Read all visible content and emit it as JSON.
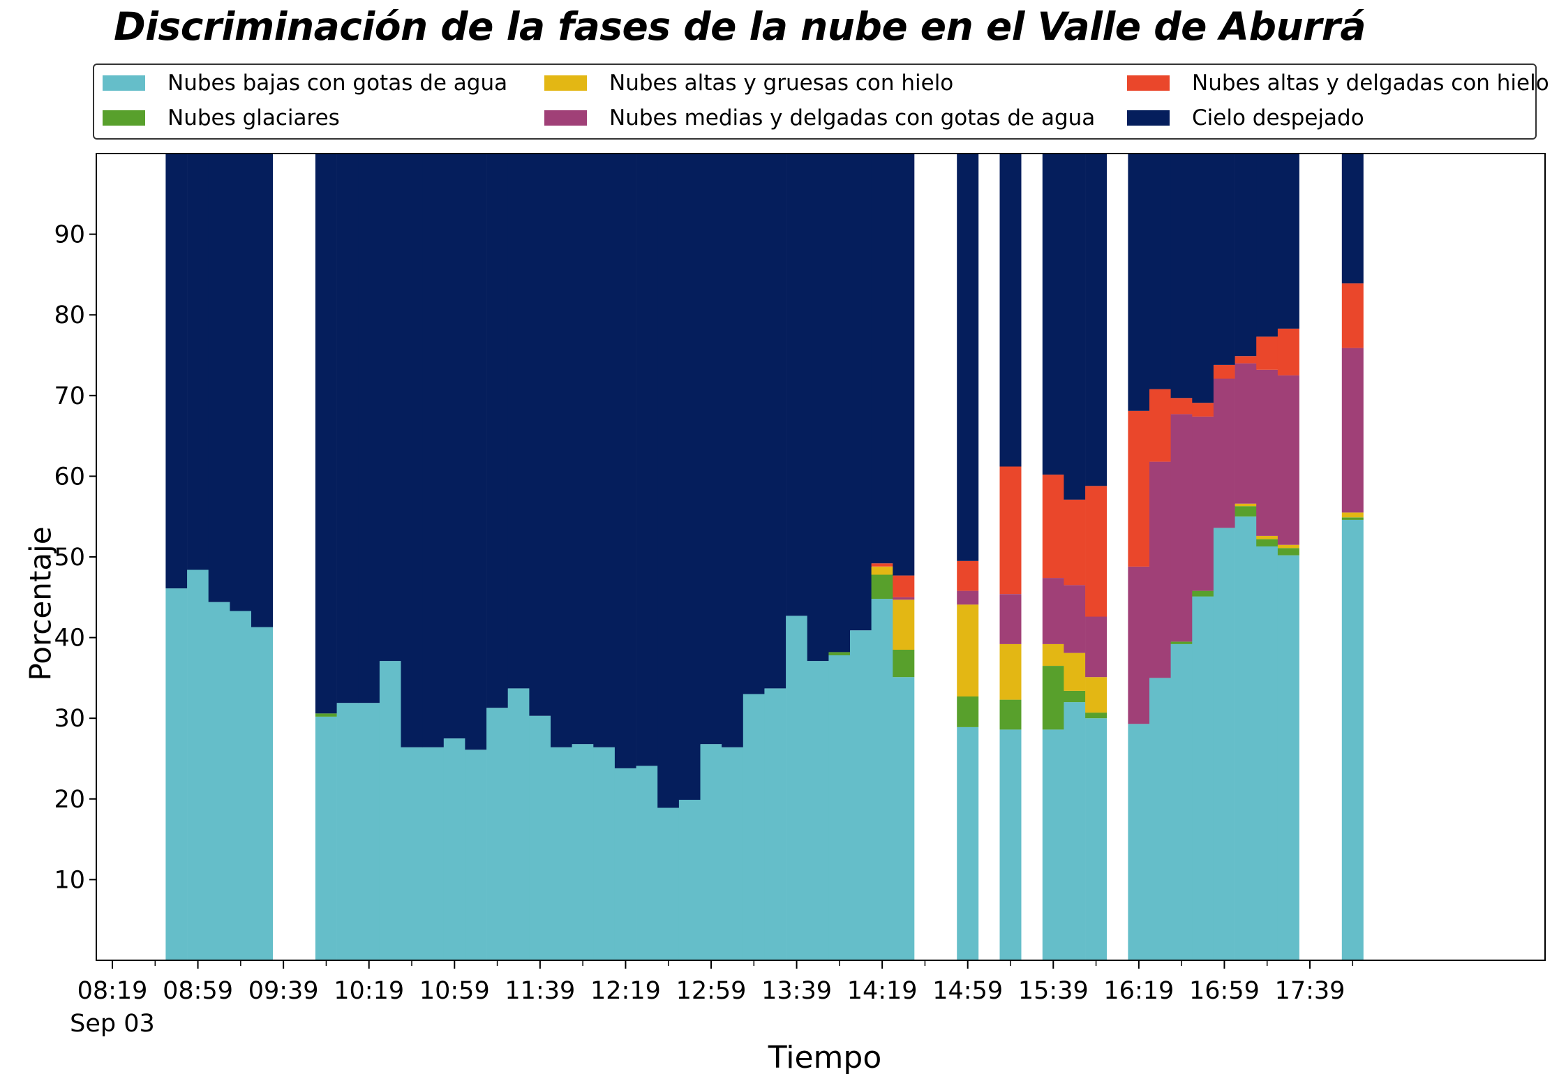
{
  "chart_data": {
    "type": "bar",
    "stacked": true,
    "title": "Discriminación de la fases de la nube en el Valle de Aburrá",
    "xlabel": "Tiempo",
    "ylabel": "Porcentaje",
    "ylim": [
      0,
      100
    ],
    "yticks": [
      10,
      20,
      30,
      40,
      50,
      60,
      70,
      80,
      90
    ],
    "xticks": [
      "08:19",
      "08:59",
      "09:39",
      "10:19",
      "10:59",
      "11:39",
      "12:19",
      "12:59",
      "13:39",
      "14:19",
      "14:59",
      "15:39",
      "16:19",
      "16:59",
      "17:39"
    ],
    "xtick_sublabel": "Sep 03",
    "legend_position": "top",
    "grid": false,
    "x": [
      "08:49",
      "08:59",
      "09:09",
      "09:19",
      "09:29",
      "09:59",
      "10:09",
      "10:19",
      "10:29",
      "10:39",
      "10:49",
      "10:59",
      "11:09",
      "11:19",
      "11:29",
      "11:39",
      "11:49",
      "11:59",
      "12:09",
      "12:19",
      "12:29",
      "12:39",
      "12:49",
      "12:59",
      "13:09",
      "13:19",
      "13:29",
      "13:39",
      "13:49",
      "13:59",
      "14:09",
      "14:19",
      "14:29",
      "14:59",
      "15:19",
      "15:39",
      "15:49",
      "15:59",
      "16:19",
      "16:29",
      "16:39",
      "16:49",
      "16:59",
      "17:09",
      "17:19",
      "17:29",
      "17:59"
    ],
    "series": [
      {
        "name": "Nubes bajas con gotas de agua",
        "color": "#65bec9",
        "values": [
          46.1,
          48.4,
          44.4,
          43.3,
          41.3,
          30.2,
          31.9,
          31.9,
          37.1,
          26.4,
          26.4,
          27.5,
          26.1,
          31.3,
          33.7,
          30.3,
          26.4,
          26.8,
          26.4,
          23.8,
          24.1,
          18.9,
          19.9,
          26.8,
          26.4,
          33.0,
          33.7,
          42.7,
          37.1,
          37.8,
          40.9,
          44.8,
          35.1,
          28.9,
          28.6,
          28.6,
          32.0,
          30.0,
          29.3,
          35.0,
          39.2,
          45.1,
          53.6,
          55.0,
          51.3,
          50.2,
          54.6
        ]
      },
      {
        "name": "Nubes glaciares",
        "color": "#58a02c",
        "values": [
          0,
          0,
          0,
          0,
          0,
          0.4,
          0,
          0,
          0,
          0,
          0,
          0,
          0,
          0,
          0,
          0,
          0,
          0,
          0,
          0,
          0,
          0,
          0,
          0,
          0,
          0,
          0,
          0,
          0,
          0.4,
          0,
          3.0,
          3.4,
          3.8,
          3.7,
          7.9,
          1.4,
          0.7,
          0,
          0,
          0.3,
          0.7,
          0,
          1.3,
          0.9,
          0.9,
          0.3
        ]
      },
      {
        "name": "Nubes altas y gruesas con hielo",
        "color": "#e3b714",
        "values": [
          0,
          0,
          0,
          0,
          0,
          0,
          0,
          0,
          0,
          0,
          0,
          0,
          0,
          0,
          0,
          0,
          0,
          0,
          0,
          0,
          0,
          0,
          0,
          0,
          0,
          0,
          0,
          0,
          0,
          0,
          0,
          1.0,
          6.2,
          11.4,
          6.9,
          2.7,
          4.7,
          4.4,
          0,
          0,
          0,
          0,
          0,
          0.3,
          0.4,
          0.4,
          0.6
        ]
      },
      {
        "name": "Nubes medias y delgadas con gotas de agua",
        "color": "#a04077",
        "values": [
          0,
          0,
          0,
          0,
          0,
          0,
          0,
          0,
          0,
          0,
          0,
          0,
          0,
          0,
          0,
          0,
          0,
          0,
          0,
          0,
          0,
          0,
          0,
          0,
          0,
          0,
          0,
          0,
          0,
          0,
          0,
          0,
          0.3,
          1.7,
          6.2,
          8.2,
          8.4,
          7.5,
          19.5,
          26.8,
          28.2,
          21.6,
          18.5,
          17.4,
          20.6,
          21.0,
          20.4
        ]
      },
      {
        "name": "Nubes altas y delgadas con hielo",
        "color": "#ea472b",
        "values": [
          0,
          0,
          0,
          0,
          0,
          0,
          0,
          0,
          0,
          0,
          0,
          0,
          0,
          0,
          0,
          0,
          0,
          0,
          0,
          0,
          0,
          0,
          0,
          0,
          0,
          0,
          0,
          0,
          0,
          0,
          0,
          0.4,
          2.7,
          3.7,
          15.8,
          12.8,
          10.6,
          16.2,
          19.3,
          9.0,
          2.0,
          1.7,
          1.7,
          0.9,
          4.1,
          5.8,
          8.0
        ]
      },
      {
        "name": "Cielo despejado",
        "color": "#051e5c",
        "values": [
          53.9,
          51.6,
          55.6,
          56.7,
          58.7,
          69.4,
          68.1,
          68.1,
          62.9,
          73.6,
          73.6,
          72.5,
          73.9,
          68.7,
          66.3,
          69.7,
          73.6,
          73.2,
          73.6,
          76.2,
          75.9,
          81.1,
          80.1,
          73.2,
          73.6,
          67.0,
          66.3,
          57.3,
          62.9,
          61.8,
          59.1,
          50.8,
          52.3,
          50.5,
          38.8,
          39.8,
          42.9,
          41.2,
          31.9,
          29.2,
          30.3,
          30.9,
          26.2,
          25.1,
          22.7,
          21.7,
          16.1
        ]
      }
    ]
  }
}
